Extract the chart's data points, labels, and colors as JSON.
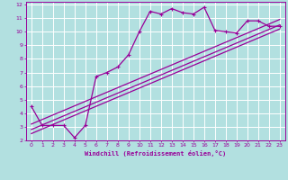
{
  "xlabel": "Windchill (Refroidissement éolien,°C)",
  "background_color": "#b2e0e0",
  "grid_color": "#ffffff",
  "line_color": "#990099",
  "xlim": [
    -0.5,
    23.5
  ],
  "ylim": [
    2,
    12.2
  ],
  "xticks": [
    0,
    1,
    2,
    3,
    4,
    5,
    6,
    7,
    8,
    9,
    10,
    11,
    12,
    13,
    14,
    15,
    16,
    17,
    18,
    19,
    20,
    21,
    22,
    23
  ],
  "yticks": [
    2,
    3,
    4,
    5,
    6,
    7,
    8,
    9,
    10,
    11,
    12
  ],
  "curve1_x": [
    0,
    1,
    2,
    3,
    4,
    5,
    6,
    7,
    8,
    9,
    10,
    11,
    12,
    13,
    14,
    15,
    16,
    17,
    18,
    19,
    20,
    21,
    22,
    23
  ],
  "curve1_y": [
    4.5,
    3.1,
    3.1,
    3.1,
    2.2,
    3.1,
    6.7,
    7.0,
    7.4,
    8.3,
    10.0,
    11.5,
    11.3,
    11.7,
    11.4,
    11.3,
    11.8,
    10.1,
    10.0,
    9.9,
    10.8,
    10.8,
    10.4,
    10.4
  ],
  "line1_x": [
    0,
    23
  ],
  "line1_y": [
    2.5,
    10.2
  ],
  "line2_x": [
    0,
    23
  ],
  "line2_y": [
    2.8,
    10.5
  ],
  "line3_x": [
    0,
    23
  ],
  "line3_y": [
    3.2,
    10.9
  ],
  "marker": "+",
  "marker_size": 3,
  "linewidth": 0.9
}
